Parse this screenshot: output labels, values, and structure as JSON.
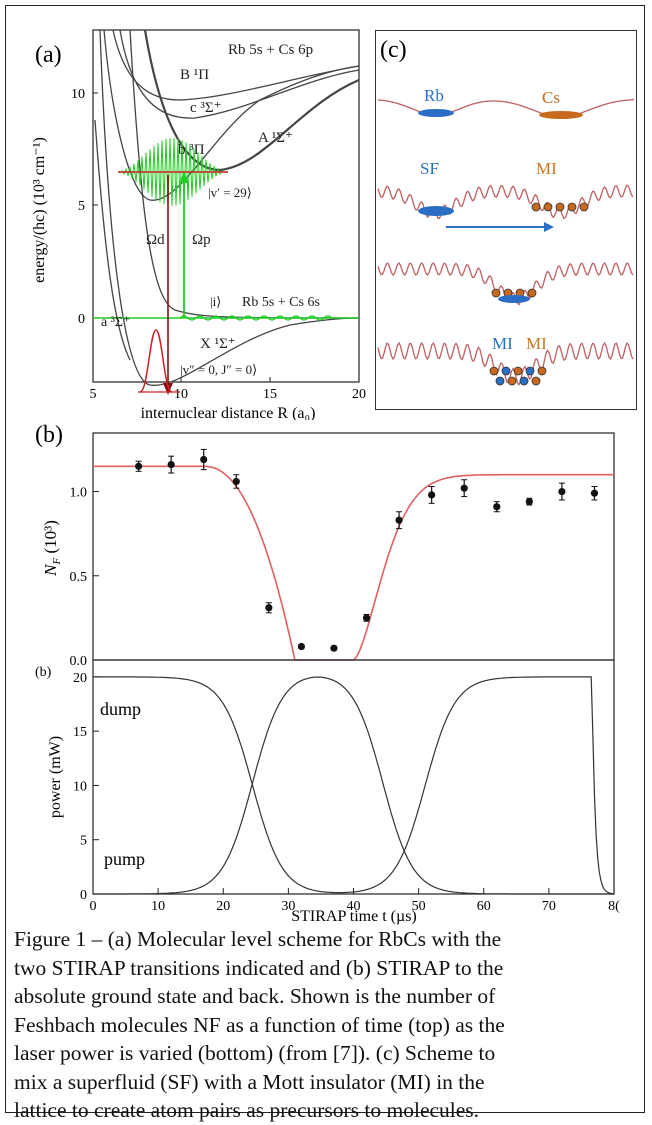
{
  "panel_a": {
    "label": "(a)",
    "ylabel": "energy/(hc) (10³ cm⁻¹)",
    "xlabel": "internuclear distance R (a₀)",
    "xticks": [
      "5",
      "10",
      "15",
      "20"
    ],
    "yticks": [
      "10",
      "5",
      "0"
    ],
    "curve_labels": {
      "asym_top": "Rb 5s + Cs 6p",
      "asym_bottom": "Rb 5s + Cs 6s",
      "B": "B ¹Π",
      "c": "c ³Σ⁺",
      "b": "b ³Π",
      "A": "A ¹Σ⁺",
      "a": "a ³Σ⁺",
      "X": "X ¹Σ⁺",
      "v_prime": "|v′ = 29⟩",
      "i_state": "|i⟩",
      "v_dprime": "|v″ = 0, J″ = 0⟩",
      "omega_d": "Ωd",
      "omega_p": "Ωp"
    },
    "colors": {
      "curves": "#444444",
      "green": "#22cc22",
      "red": "#cc2222",
      "dark_red": "#8a1010"
    }
  },
  "panel_b": {
    "label": "(b)",
    "label_bottom": "(b)",
    "chart_data": [
      {
        "type": "scatter",
        "xlim": [
          0,
          80
        ],
        "ylim": [
          0,
          1.3
        ],
        "ylabel": "NF (10³)",
        "yticks": [
          "0.0",
          "0.5",
          "1.0"
        ],
        "points": [
          {
            "x": 7,
            "y": 1.15,
            "err": 0.03
          },
          {
            "x": 12,
            "y": 1.16,
            "err": 0.05
          },
          {
            "x": 17,
            "y": 1.19,
            "err": 0.06
          },
          {
            "x": 22,
            "y": 1.06,
            "err": 0.04
          },
          {
            "x": 27,
            "y": 0.31,
            "err": 0.03
          },
          {
            "x": 32,
            "y": 0.08,
            "err": 0.01
          },
          {
            "x": 37,
            "y": 0.07,
            "err": 0.01
          },
          {
            "x": 42,
            "y": 0.25,
            "err": 0.02
          },
          {
            "x": 47,
            "y": 0.83,
            "err": 0.05
          },
          {
            "x": 52,
            "y": 0.98,
            "err": 0.05
          },
          {
            "x": 57,
            "y": 1.02,
            "err": 0.05
          },
          {
            "x": 62,
            "y": 0.91,
            "err": 0.03
          },
          {
            "x": 67,
            "y": 0.94,
            "err": 0.02
          },
          {
            "x": 72,
            "y": 1.0,
            "err": 0.05
          },
          {
            "x": 77,
            "y": 0.99,
            "err": 0.04
          }
        ],
        "fit_color": "#e06060"
      },
      {
        "type": "line",
        "xlim": [
          0,
          80
        ],
        "ylim": [
          0,
          21
        ],
        "xlabel": "STIRAP time t (µs)",
        "ylabel": "power (mW)",
        "xticks": [
          "0",
          "10",
          "20",
          "30",
          "40",
          "50",
          "60",
          "70",
          "8("
        ],
        "yticks": [
          "0",
          "5",
          "10",
          "15",
          "20"
        ],
        "series_labels": {
          "dump": "dump",
          "pump": "pump"
        }
      }
    ]
  },
  "panel_c": {
    "label": "(c)",
    "texts": {
      "rb": "Rb",
      "cs": "Cs",
      "sf": "SF",
      "mi": "MI",
      "mi_left": "MI",
      "mi_right": "MI"
    },
    "colors": {
      "wave": "#c06060",
      "rb": "#2a6fc4",
      "cs": "#c86a1e",
      "arrow": "#2a6fc4",
      "mi_text": "#c8781e"
    }
  },
  "caption": {
    "lines": [
      "Figure 1 – (a) Molecular level scheme for RbCs with the",
      "two STIRAP transitions indicated and (b) STIRAP to the",
      "absolute ground state and back. Shown is the number of",
      "Feshbach molecules NF as a function of time (top) as the",
      "laser power is varied (bottom) (from [7]). (c) Scheme to",
      "mix a superfluid (SF) with a Mott insulator (MI) in the",
      "lattice to create atom pairs as precursors to molecules."
    ]
  }
}
